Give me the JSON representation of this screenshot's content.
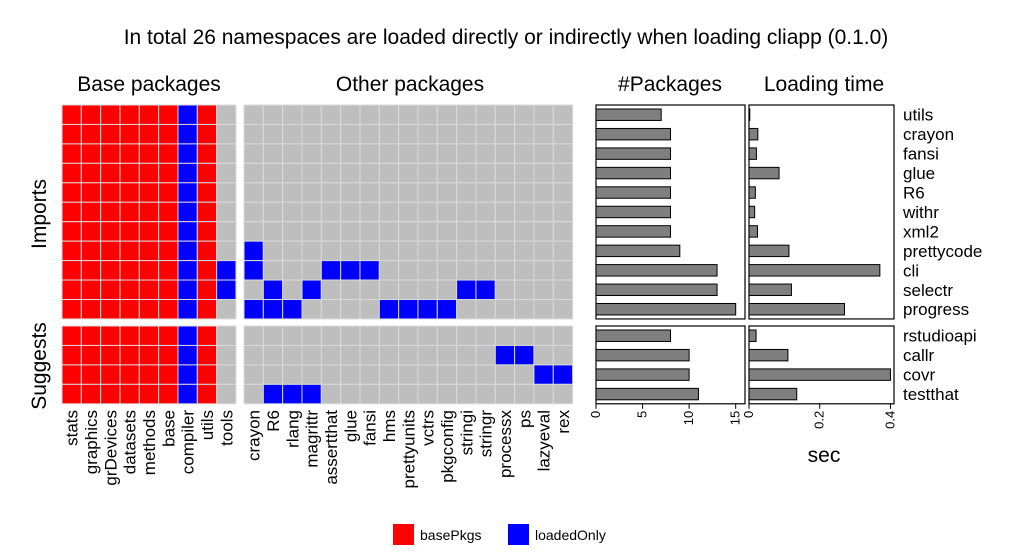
{
  "title": "In total 26 namespaces are loaded directly or indirectly when loading cliapp (0.1.0)",
  "panels": {
    "base": "Base packages",
    "other": "Other packages",
    "count": "#Packages",
    "time": "Loading time"
  },
  "groups": {
    "imports": "Imports",
    "suggests": "Suggests"
  },
  "xaxis": {
    "time_label": "sec"
  },
  "legend": [
    {
      "label": "basePkgs",
      "color": "#ff0000"
    },
    {
      "label": "loadedOnly",
      "color": "#0000ff"
    }
  ],
  "colors": {
    "basePkgs": "#ff0000",
    "loadedOnly": "#0000ff",
    "empty": "#bebebe",
    "bar": "#7f7f7f"
  },
  "chart_data": {
    "type": "heatmap",
    "base_columns": [
      "stats",
      "graphics",
      "grDevices",
      "datasets",
      "methods",
      "base",
      "compiler",
      "utils",
      "tools"
    ],
    "other_columns": [
      "crayon",
      "R6",
      "rlang",
      "magrittr",
      "assertthat",
      "glue",
      "fansi",
      "hms",
      "prettyunits",
      "vctrs",
      "pkgconfig",
      "stringi",
      "stringr",
      "processx",
      "ps",
      "lazyeval",
      "rex"
    ],
    "imports": [
      {
        "name": "utils",
        "base": "RRRRRRBR-",
        "other": "-----------------",
        "count": 7,
        "time": 0.002
      },
      {
        "name": "crayon",
        "base": "RRRRRRBR-",
        "other": "-----------------",
        "count": 8,
        "time": 0.025
      },
      {
        "name": "fansi",
        "base": "RRRRRRBR-",
        "other": "-----------------",
        "count": 8,
        "time": 0.021
      },
      {
        "name": "glue",
        "base": "RRRRRRBR-",
        "other": "-----------------",
        "count": 8,
        "time": 0.085
      },
      {
        "name": "R6",
        "base": "RRRRRRBR-",
        "other": "-----------------",
        "count": 8,
        "time": 0.018
      },
      {
        "name": "withr",
        "base": "RRRRRRBR-",
        "other": "-----------------",
        "count": 8,
        "time": 0.016
      },
      {
        "name": "xml2",
        "base": "RRRRRRBR-",
        "other": "-----------------",
        "count": 8,
        "time": 0.024
      },
      {
        "name": "prettycode",
        "base": "RRRRRRBR-",
        "other": "B----------------",
        "count": 9,
        "time": 0.113
      },
      {
        "name": "cli",
        "base": "RRRRRRBRB",
        "other": "B---BBB----------",
        "count": 13,
        "time": 0.37
      },
      {
        "name": "selectr",
        "base": "RRRRRRBRB",
        "other": "-B-B-------BB----",
        "count": 13,
        "time": 0.12
      },
      {
        "name": "progress",
        "base": "RRRRRRBR-",
        "other": "BBB----BBBB------",
        "count": 15,
        "time": 0.27
      }
    ],
    "suggests": [
      {
        "name": "rstudioapi",
        "base": "RRRRRRBR-",
        "other": "-----------------",
        "count": 8,
        "time": 0.02
      },
      {
        "name": "callr",
        "base": "RRRRRRBR-",
        "other": "-------------BB--",
        "count": 10,
        "time": 0.11
      },
      {
        "name": "covr",
        "base": "RRRRRRBR-",
        "other": "---------------BB",
        "count": 10,
        "time": 0.4
      },
      {
        "name": "testthat",
        "base": "RRRRRRBR-",
        "other": "-BBB-------------",
        "count": 11,
        "time": 0.135
      }
    ],
    "count_axis": {
      "ticks": [
        0,
        5,
        10,
        15
      ],
      "xlim": [
        0,
        16
      ]
    },
    "time_axis": {
      "ticks": [
        0,
        0.2,
        0.4
      ],
      "ticklabels": [
        "0",
        "0.2",
        "0.4"
      ],
      "xlim": [
        0,
        0.41
      ]
    },
    "grid": false,
    "legend_position": "bottom"
  }
}
